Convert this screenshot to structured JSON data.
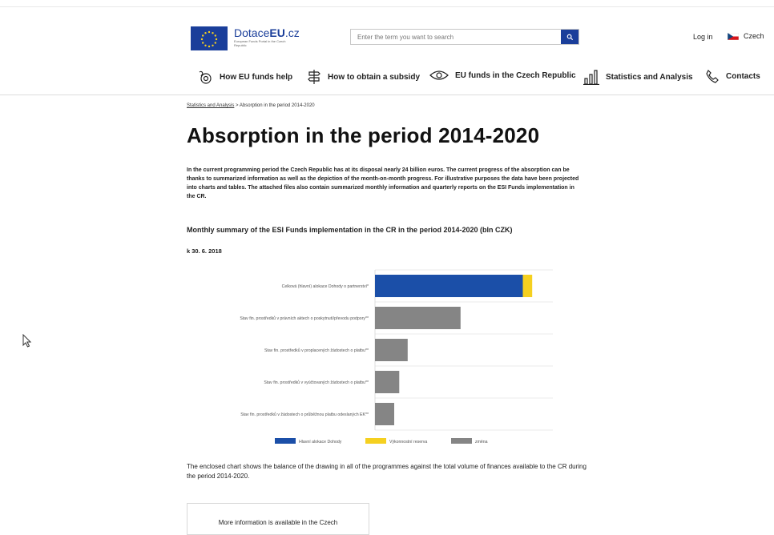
{
  "header": {
    "logo_title_plain": "Dotace",
    "logo_title_bold": "EU",
    "logo_title_suffix": ".cz",
    "logo_subtitle": "European Funds Portal in the Czech Republic",
    "search_placeholder": "Enter the term you want to search",
    "login_label": "Log in",
    "language_label": "Czech"
  },
  "nav": {
    "items": [
      {
        "label": "How EU funds help",
        "icon": "piggy-bank-icon"
      },
      {
        "label": "How to obtain a subsidy",
        "icon": "signpost-icon"
      },
      {
        "label": "EU funds in the Czech Republic",
        "icon": "eye-icon"
      },
      {
        "label": "Statistics and Analysis",
        "icon": "bar-chart-icon"
      },
      {
        "label": "Contacts",
        "icon": "phone-icon"
      }
    ]
  },
  "breadcrumb": {
    "parent": "Statistics and Analysis",
    "separator": " > ",
    "current": "Absorption in the period 2014-2020"
  },
  "page": {
    "title": "Absorption in the period 2014-2020",
    "intro": "In the current programming period the Czech Republic has at its disposal nearly 24 billion euros. The current progress of the absorption can be thanks to summarized information as well as the depiction of the month-on-month progress. For illustrative purposes the data have been projected into charts and tables. The attached files also contain summarized monthly information and quarterly reports on the ESI Funds implementation in the CR.",
    "section_title": "Monthly summary of the ESI Funds implementation in the CR in the period 2014-2020 (bln CZK)",
    "date_label": "k 30. 6. 2018",
    "closing_text": "The enclosed chart shows the balance of the drawing in all of the programmes against the total volume of finances available to the CR during the period 2014-2020.",
    "more_info": "More information is available in the Czech"
  },
  "chart_data": {
    "type": "bar",
    "orientation": "horizontal",
    "stacked": true,
    "grid": true,
    "legend_position": "bottom",
    "categories": [
      "Celková (hlavní) alokace Dohody o partnerství*",
      "Stav fin. prostředků v právních aktech o poskytnutí/převodu podpory**",
      "Stav fin. prostředků v proplacených žádostech o platbu**",
      "Stav fin. prostředků v vyúčtovaných žádostech o platbu**",
      "Stav fin. prostředků v žádostech o průběžnou platbu odeslaných EK**"
    ],
    "series": [
      {
        "name": "Hlavní alokace Dohody",
        "color": "#1b4fa8",
        "values": [
          615,
          0,
          0,
          0,
          0
        ]
      },
      {
        "name": "Výkonnostní reserva",
        "color": "#f5d020",
        "values": [
          39,
          0,
          0,
          0,
          0
        ]
      },
      {
        "name": "změna",
        "color": "#858585",
        "values": [
          0,
          356,
          136,
          101,
          80
        ]
      }
    ],
    "xlim": [
      0,
      740
    ]
  }
}
